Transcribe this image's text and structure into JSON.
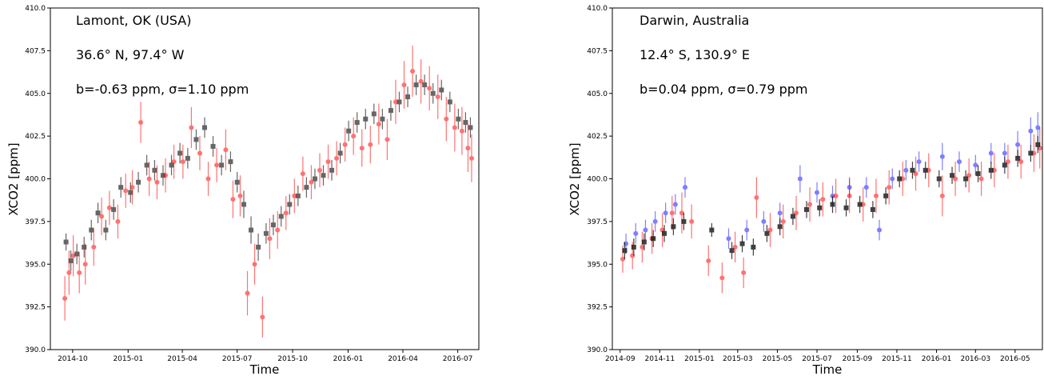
{
  "chart_data": [
    {
      "type": "scatter",
      "title": "",
      "xlabel": "Time",
      "ylabel": "XCO2 [ppm]",
      "ylim": [
        390.0,
        410.0
      ],
      "yticks": [
        "390.0",
        "392.5",
        "395.0",
        "397.5",
        "400.0",
        "402.5",
        "405.0",
        "407.5",
        "410.0"
      ],
      "xlim": [
        "2014-08-25",
        "2016-08-05"
      ],
      "xticks": [
        "2014-10",
        "2015-01",
        "2015-04",
        "2015-07",
        "2015-10",
        "2016-01",
        "2016-04",
        "2016-07"
      ],
      "xtick_dates": [
        "2014-10-01",
        "2015-01-01",
        "2015-04-01",
        "2015-07-01",
        "2015-10-01",
        "2016-01-01",
        "2016-04-01",
        "2016-07-01"
      ],
      "annotations": [
        "Lamont, OK (USA)",
        "36.6° N, 97.4° W",
        "b=-0.63 ppm, σ=1.10 ppm"
      ],
      "grid": false,
      "series": [
        {
          "marker": "square",
          "color": "#333333",
          "opacity": 0.75,
          "x": [
            "2014-09-20",
            "2014-09-28",
            "2014-10-08",
            "2014-10-20",
            "2014-11-01",
            "2014-11-12",
            "2014-11-25",
            "2014-12-08",
            "2014-12-20",
            "2015-01-05",
            "2015-01-18",
            "2015-02-01",
            "2015-02-14",
            "2015-02-28",
            "2015-03-14",
            "2015-03-28",
            "2015-04-10",
            "2015-04-24",
            "2015-05-08",
            "2015-05-22",
            "2015-06-05",
            "2015-06-20",
            "2015-07-01",
            "2015-07-12",
            "2015-07-24",
            "2015-08-05",
            "2015-08-18",
            "2015-08-30",
            "2015-09-12",
            "2015-09-26",
            "2015-10-10",
            "2015-10-24",
            "2015-11-07",
            "2015-11-21",
            "2015-12-05",
            "2015-12-19",
            "2016-01-02",
            "2016-01-16",
            "2016-01-30",
            "2016-02-13",
            "2016-02-27",
            "2016-03-12",
            "2016-03-26",
            "2016-04-09",
            "2016-04-23",
            "2016-05-07",
            "2016-05-21",
            "2016-06-04",
            "2016-06-18",
            "2016-07-02",
            "2016-07-14",
            "2016-07-22"
          ],
          "y": [
            396.3,
            395.2,
            395.6,
            396.0,
            397.0,
            398.0,
            397.0,
            398.2,
            399.5,
            399.2,
            399.8,
            400.8,
            400.5,
            400.2,
            400.8,
            401.5,
            401.2,
            402.3,
            403.0,
            401.9,
            400.8,
            401.0,
            399.8,
            398.5,
            397.0,
            396.0,
            396.8,
            397.3,
            397.8,
            398.5,
            399.0,
            399.5,
            400.0,
            400.2,
            400.5,
            401.5,
            402.8,
            403.3,
            403.5,
            403.8,
            403.5,
            404.0,
            404.5,
            404.8,
            405.5,
            405.5,
            405.0,
            405.2,
            404.5,
            403.5,
            403.3,
            403.0
          ],
          "err": [
            0.5,
            0.6,
            0.6,
            0.6,
            0.6,
            0.6,
            0.6,
            0.6,
            0.6,
            0.6,
            0.6,
            0.6,
            0.6,
            0.6,
            0.6,
            0.6,
            0.6,
            0.6,
            0.6,
            0.6,
            0.6,
            0.6,
            0.6,
            0.8,
            0.8,
            0.8,
            0.6,
            0.6,
            0.6,
            0.6,
            0.6,
            0.6,
            0.6,
            0.6,
            0.6,
            0.6,
            0.6,
            0.6,
            0.6,
            0.6,
            0.6,
            0.6,
            0.6,
            0.6,
            0.6,
            0.6,
            0.6,
            0.6,
            0.6,
            0.6,
            0.6,
            0.6
          ]
        },
        {
          "marker": "circle",
          "color": "#ff0000",
          "opacity": 0.55,
          "x": [
            "2014-09-18",
            "2014-09-25",
            "2014-10-02",
            "2014-10-12",
            "2014-10-22",
            "2014-11-05",
            "2014-11-18",
            "2014-12-01",
            "2014-12-15",
            "2014-12-28",
            "2015-01-08",
            "2015-01-22",
            "2015-02-05",
            "2015-02-18",
            "2015-03-04",
            "2015-03-18",
            "2015-04-02",
            "2015-04-16",
            "2015-04-30",
            "2015-05-14",
            "2015-05-28",
            "2015-06-12",
            "2015-06-24",
            "2015-07-06",
            "2015-07-18",
            "2015-07-30",
            "2015-08-12",
            "2015-08-24",
            "2015-09-06",
            "2015-09-20",
            "2015-10-04",
            "2015-10-18",
            "2015-11-01",
            "2015-11-15",
            "2015-11-29",
            "2015-12-13",
            "2015-12-27",
            "2016-01-10",
            "2016-01-24",
            "2016-02-07",
            "2016-02-21",
            "2016-03-06",
            "2016-03-20",
            "2016-04-03",
            "2016-04-17",
            "2016-05-01",
            "2016-05-15",
            "2016-05-29",
            "2016-06-12",
            "2016-06-26",
            "2016-07-08",
            "2016-07-18",
            "2016-07-24"
          ],
          "y": [
            393.0,
            394.5,
            395.5,
            394.5,
            395.0,
            396.0,
            397.8,
            398.3,
            397.5,
            399.3,
            399.5,
            403.3,
            400.0,
            399.8,
            400.2,
            401.0,
            401.0,
            403.0,
            401.5,
            400.0,
            400.8,
            401.7,
            398.8,
            399.0,
            393.3,
            395.0,
            391.9,
            396.5,
            397.0,
            398.0,
            399.0,
            400.3,
            399.8,
            400.5,
            401.0,
            401.2,
            402.0,
            402.5,
            401.8,
            402.0,
            403.2,
            402.3,
            404.5,
            405.5,
            406.3,
            405.7,
            405.3,
            404.8,
            403.5,
            403.0,
            402.8,
            401.8,
            401.2
          ],
          "err": [
            1.3,
            1.3,
            1.2,
            1.2,
            1.2,
            1.1,
            1.1,
            1.0,
            1.0,
            1.0,
            1.0,
            1.2,
            1.0,
            1.0,
            1.0,
            1.0,
            1.0,
            1.2,
            1.0,
            1.0,
            1.0,
            1.2,
            1.1,
            1.2,
            1.3,
            1.2,
            1.2,
            1.2,
            1.1,
            1.0,
            1.0,
            1.0,
            1.0,
            1.0,
            1.0,
            1.0,
            1.0,
            1.1,
            1.1,
            1.1,
            1.2,
            1.2,
            1.3,
            1.4,
            1.5,
            1.3,
            1.3,
            1.3,
            1.3,
            1.4,
            1.4,
            1.4,
            1.4
          ]
        }
      ]
    },
    {
      "type": "scatter",
      "title": "",
      "xlabel": "Time",
      "ylabel": "XCO2 [ppm]",
      "ylim": [
        390.0,
        410.0
      ],
      "yticks": [
        "390.0",
        "392.5",
        "395.0",
        "397.5",
        "400.0",
        "402.5",
        "405.0",
        "407.5",
        "410.0"
      ],
      "xlim": [
        "2014-08-20",
        "2016-06-12"
      ],
      "xticks": [
        "2014-09",
        "2014-11",
        "2015-01",
        "2015-03",
        "2015-05",
        "2015-07",
        "2015-09",
        "2015-11",
        "2016-01",
        "2016-03",
        "2016-05"
      ],
      "xtick_dates": [
        "2014-09-01",
        "2014-11-01",
        "2015-01-01",
        "2015-03-01",
        "2015-05-01",
        "2015-07-01",
        "2015-09-01",
        "2015-11-01",
        "2016-01-01",
        "2016-03-01",
        "2016-05-01"
      ],
      "annotations": [
        "Darwin, Australia",
        "12.4° S, 130.9° E",
        "b=0.04 ppm, σ=0.79 ppm"
      ],
      "grid": false,
      "series": [
        {
          "marker": "circle",
          "color": "#0000ff",
          "opacity": 0.5,
          "x": [
            "2014-09-10",
            "2014-09-25",
            "2014-10-10",
            "2014-10-25",
            "2014-11-10",
            "2014-11-25",
            "2014-12-10",
            "2015-02-15",
            "2015-03-15",
            "2015-04-10",
            "2015-05-05",
            "2015-06-05",
            "2015-07-01",
            "2015-07-25",
            "2015-08-20",
            "2015-09-15",
            "2015-10-05",
            "2015-10-25",
            "2015-11-15",
            "2015-12-05",
            "2016-01-10",
            "2016-02-05",
            "2016-03-01",
            "2016-03-25",
            "2016-04-15",
            "2016-05-05",
            "2016-05-25",
            "2016-06-05"
          ],
          "y": [
            396.2,
            396.8,
            397.0,
            397.5,
            398.0,
            398.5,
            399.5,
            396.5,
            397.0,
            397.5,
            398.0,
            400.0,
            399.2,
            399.0,
            399.5,
            399.5,
            397.0,
            400.0,
            400.5,
            401.0,
            401.3,
            401.0,
            400.8,
            401.5,
            401.5,
            402.0,
            402.8,
            403.0
          ],
          "err": [
            0.6,
            0.6,
            0.6,
            0.6,
            0.6,
            0.6,
            0.6,
            0.6,
            0.6,
            0.6,
            0.6,
            0.8,
            0.6,
            0.6,
            0.6,
            0.6,
            0.6,
            0.6,
            0.6,
            0.6,
            0.8,
            0.6,
            0.6,
            0.6,
            0.6,
            0.8,
            0.8,
            0.9
          ]
        },
        {
          "marker": "circle",
          "color": "#ff0000",
          "opacity": 0.55,
          "x": [
            "2014-09-05",
            "2014-09-20",
            "2014-10-05",
            "2014-10-20",
            "2014-11-05",
            "2014-11-20",
            "2014-12-05",
            "2014-12-20",
            "2015-01-15",
            "2015-02-05",
            "2015-02-25",
            "2015-03-10",
            "2015-03-30",
            "2015-04-20",
            "2015-05-10",
            "2015-05-30",
            "2015-06-20",
            "2015-07-10",
            "2015-07-30",
            "2015-08-20",
            "2015-09-10",
            "2015-09-30",
            "2015-10-20",
            "2015-11-10",
            "2015-11-30",
            "2015-12-20",
            "2016-01-10",
            "2016-01-30",
            "2016-02-20",
            "2016-03-10",
            "2016-03-30",
            "2016-04-20",
            "2016-05-10",
            "2016-05-30",
            "2016-06-08"
          ],
          "y": [
            395.3,
            395.5,
            396.0,
            396.5,
            397.0,
            398.0,
            398.0,
            397.5,
            395.2,
            394.2,
            396.0,
            394.5,
            398.9,
            397.0,
            397.5,
            398.0,
            398.5,
            398.8,
            399.0,
            399.0,
            398.5,
            399.0,
            399.5,
            400.0,
            400.3,
            400.5,
            399.0,
            400.0,
            400.2,
            400.0,
            400.5,
            401.0,
            401.0,
            401.5,
            401.8
          ],
          "err": [
            0.8,
            0.8,
            0.9,
            0.9,
            1.0,
            1.0,
            1.2,
            1.0,
            0.9,
            0.9,
            0.9,
            0.9,
            1.2,
            1.0,
            1.0,
            1.0,
            1.0,
            1.0,
            1.0,
            1.0,
            1.0,
            1.0,
            1.0,
            1.0,
            1.0,
            1.0,
            1.2,
            1.0,
            1.0,
            1.0,
            1.0,
            1.0,
            1.0,
            1.1,
            1.2
          ]
        },
        {
          "marker": "square",
          "color": "#111111",
          "opacity": 0.8,
          "x": [
            "2014-09-08",
            "2014-09-22",
            "2014-10-08",
            "2014-10-22",
            "2014-11-08",
            "2014-11-22",
            "2014-12-08",
            "2015-01-20",
            "2015-02-20",
            "2015-03-08",
            "2015-03-25",
            "2015-04-15",
            "2015-05-05",
            "2015-05-25",
            "2015-06-15",
            "2015-07-05",
            "2015-07-25",
            "2015-08-15",
            "2015-09-05",
            "2015-09-25",
            "2015-10-15",
            "2015-11-05",
            "2015-11-25",
            "2015-12-15",
            "2016-01-05",
            "2016-01-25",
            "2016-02-15",
            "2016-03-05",
            "2016-03-25",
            "2016-04-15",
            "2016-05-05",
            "2016-05-25",
            "2016-06-05"
          ],
          "y": [
            395.8,
            396.0,
            396.3,
            396.5,
            396.8,
            397.2,
            397.5,
            397.0,
            395.8,
            396.2,
            396.0,
            396.8,
            397.2,
            397.8,
            398.2,
            398.3,
            398.5,
            398.3,
            398.5,
            398.2,
            399.0,
            400.0,
            400.5,
            400.5,
            400.0,
            400.2,
            400.0,
            400.3,
            400.5,
            400.8,
            401.2,
            401.5,
            402.0
          ],
          "err": [
            0.5,
            0.5,
            0.5,
            0.5,
            0.5,
            0.5,
            0.5,
            0.4,
            0.5,
            0.5,
            0.5,
            0.5,
            0.5,
            0.5,
            0.5,
            0.5,
            0.5,
            0.5,
            0.5,
            0.5,
            0.5,
            0.5,
            0.5,
            0.5,
            0.5,
            0.5,
            0.5,
            0.5,
            0.5,
            0.5,
            0.5,
            0.5,
            0.5
          ]
        }
      ]
    }
  ]
}
